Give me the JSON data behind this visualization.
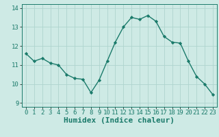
{
  "x": [
    0,
    1,
    2,
    3,
    4,
    5,
    6,
    7,
    8,
    9,
    10,
    11,
    12,
    13,
    14,
    15,
    16,
    17,
    18,
    19,
    20,
    21,
    22,
    23
  ],
  "y": [
    11.6,
    11.2,
    11.35,
    11.1,
    11.0,
    10.5,
    10.3,
    10.25,
    9.55,
    10.2,
    11.2,
    12.2,
    13.0,
    13.5,
    13.4,
    13.6,
    13.3,
    12.5,
    12.2,
    12.15,
    11.2,
    10.4,
    10.0,
    9.45
  ],
  "line_color": "#1a7a6a",
  "marker": "D",
  "marker_size": 2.2,
  "bg_color": "#ceeae5",
  "grid_color": "#aed4ce",
  "xlabel": "Humidex (Indice chaleur)",
  "ylim": [
    8.8,
    14.2
  ],
  "xlim": [
    -0.5,
    23.5
  ],
  "yticks": [
    9,
    10,
    11,
    12,
    13,
    14
  ],
  "xticks": [
    0,
    1,
    2,
    3,
    4,
    5,
    6,
    7,
    8,
    9,
    10,
    11,
    12,
    13,
    14,
    15,
    16,
    17,
    18,
    19,
    20,
    21,
    22,
    23
  ],
  "tick_fontsize": 6.5,
  "xlabel_fontsize": 8.0,
  "linewidth": 1.0
}
